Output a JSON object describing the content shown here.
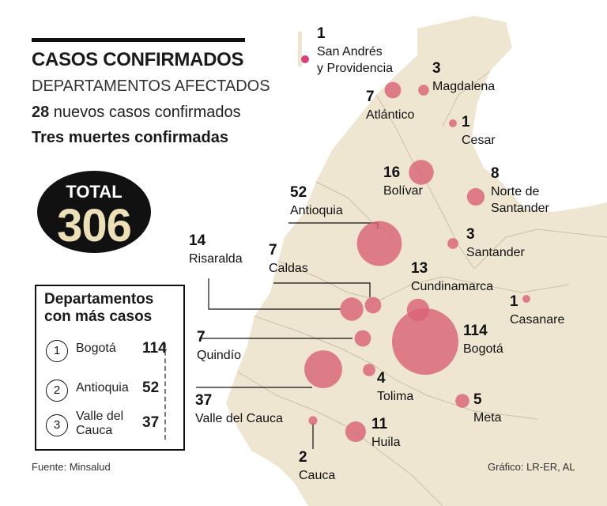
{
  "header": {
    "title": "CASOS CONFIRMADOS",
    "subtitle": "DEPARTAMENTOS AFECTADOS",
    "new_cases_count": "28",
    "new_cases_text": " nuevos casos confirmados",
    "deaths": "Tres muertes confirmadas"
  },
  "total": {
    "label": "TOTAL",
    "value": "306"
  },
  "ranking": {
    "title_line1": "Departamentos",
    "title_line2": "con más casos",
    "items": [
      {
        "rank": "1",
        "name": "Bogotá",
        "value": "114"
      },
      {
        "rank": "2",
        "name": "Antioquia",
        "value": "52"
      },
      {
        "rank": "3",
        "name": "Valle del Cauca",
        "value": "37"
      }
    ]
  },
  "departments": [
    {
      "name": "San Andrés y Providencia",
      "cases": 1
    },
    {
      "name": "Magdalena",
      "cases": 3
    },
    {
      "name": "Atlántico",
      "cases": 7
    },
    {
      "name": "Cesar",
      "cases": 1
    },
    {
      "name": "Bolívar",
      "cases": 16
    },
    {
      "name": "Norte de Santander",
      "cases": 8
    },
    {
      "name": "Antioquia",
      "cases": 52
    },
    {
      "name": "Santander",
      "cases": 3
    },
    {
      "name": "Risaralda",
      "cases": 14
    },
    {
      "name": "Caldas",
      "cases": 7
    },
    {
      "name": "Cundinamarca",
      "cases": 13
    },
    {
      "name": "Casanare",
      "cases": 1
    },
    {
      "name": "Quindío",
      "cases": 7
    },
    {
      "name": "Bogotá",
      "cases": 114
    },
    {
      "name": "Tolima",
      "cases": 4
    },
    {
      "name": "Valle del Cauca",
      "cases": 37
    },
    {
      "name": "Meta",
      "cases": 5
    },
    {
      "name": "Huila",
      "cases": 11
    },
    {
      "name": "Cauca",
      "cases": 2
    }
  ],
  "colors": {
    "bubble": "#d96475",
    "island": "#d8417a",
    "land": "#efe6d2",
    "border": "#cdbfa2"
  },
  "footer": {
    "source": "Fuente: Minsalud",
    "credit": "Gráfico: LR-ER, AL"
  }
}
